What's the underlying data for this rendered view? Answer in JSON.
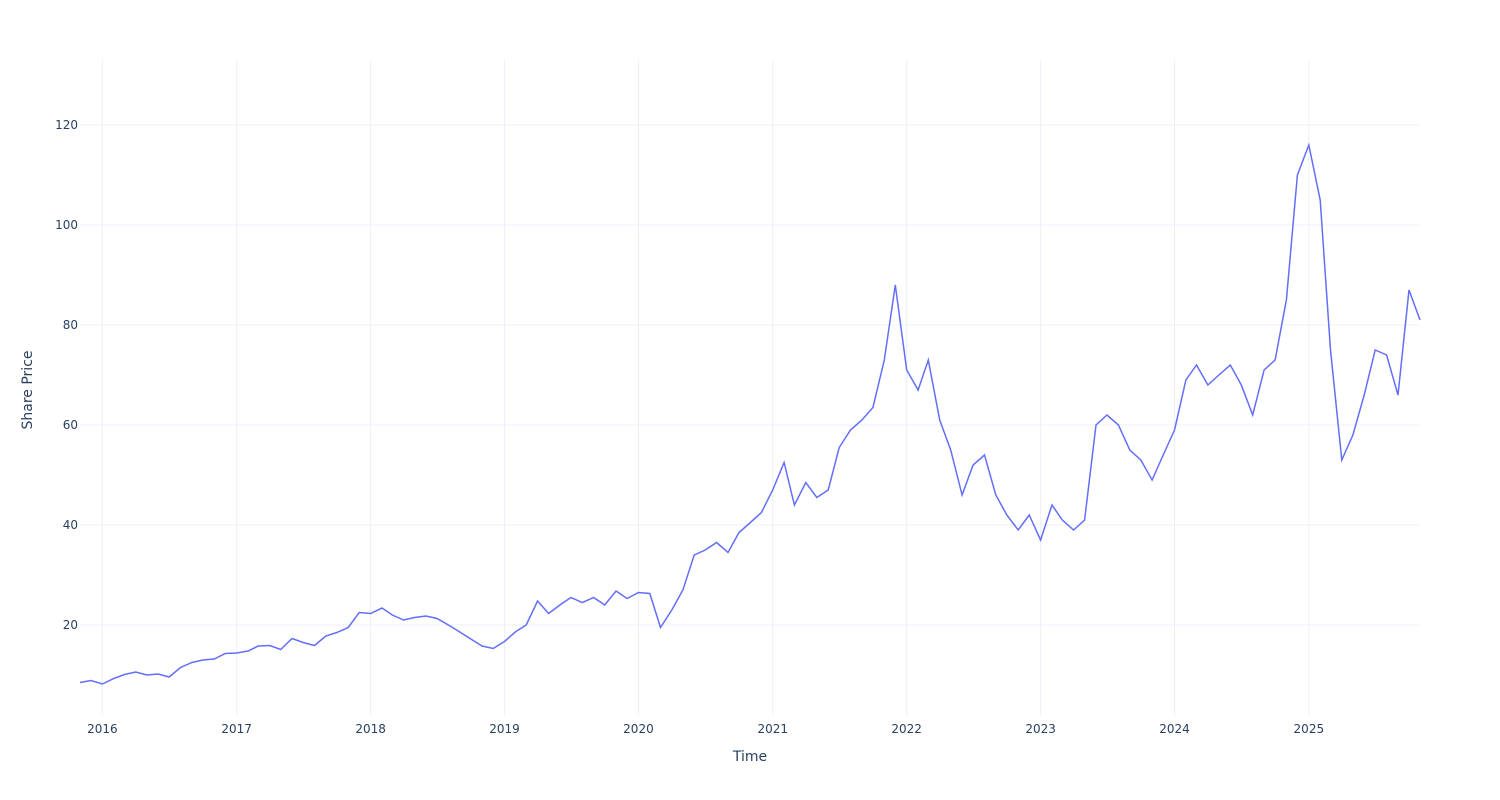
{
  "chart_data": {
    "type": "line",
    "title": "",
    "xlabel": "Time",
    "ylabel": "Share Price",
    "x_tick_labels": [
      "2016",
      "2017",
      "2018",
      "2019",
      "2020",
      "2021",
      "2022",
      "2023",
      "2024",
      "2025"
    ],
    "y_ticks": [
      20,
      40,
      60,
      80,
      100,
      120
    ],
    "xlim": [
      "2015-11-01",
      "2025-10-31"
    ],
    "ylim": [
      2,
      133
    ],
    "grid": true,
    "legend": "none",
    "line_color": "#636efa",
    "series": [
      {
        "points": [
          [
            "2015-11-01",
            8.5
          ],
          [
            "2015-12-01",
            8.9
          ],
          [
            "2016-01-01",
            8.2
          ],
          [
            "2016-02-01",
            9.3
          ],
          [
            "2016-03-01",
            10.1
          ],
          [
            "2016-04-01",
            10.6
          ],
          [
            "2016-05-01",
            10.0
          ],
          [
            "2016-06-01",
            10.2
          ],
          [
            "2016-07-01",
            9.6
          ],
          [
            "2016-08-01",
            11.5
          ],
          [
            "2016-09-01",
            12.5
          ],
          [
            "2016-10-01",
            13.0
          ],
          [
            "2016-11-01",
            13.2
          ],
          [
            "2016-12-01",
            14.3
          ],
          [
            "2017-01-01",
            14.4
          ],
          [
            "2017-02-01",
            14.8
          ],
          [
            "2017-03-01",
            15.8
          ],
          [
            "2017-04-01",
            15.9
          ],
          [
            "2017-05-01",
            15.1
          ],
          [
            "2017-06-01",
            17.3
          ],
          [
            "2017-07-01",
            16.5
          ],
          [
            "2017-08-01",
            15.9
          ],
          [
            "2017-09-01",
            17.8
          ],
          [
            "2017-10-01",
            18.5
          ],
          [
            "2017-11-01",
            19.5
          ],
          [
            "2017-12-01",
            22.5
          ],
          [
            "2018-01-01",
            22.3
          ],
          [
            "2018-02-01",
            23.4
          ],
          [
            "2018-03-01",
            22.0
          ],
          [
            "2018-04-01",
            21.0
          ],
          [
            "2018-05-01",
            21.5
          ],
          [
            "2018-06-01",
            21.8
          ],
          [
            "2018-07-01",
            21.3
          ],
          [
            "2018-08-01",
            20.0
          ],
          [
            "2018-09-01",
            18.6
          ],
          [
            "2018-10-01",
            17.2
          ],
          [
            "2018-11-01",
            15.8
          ],
          [
            "2018-12-01",
            15.3
          ],
          [
            "2019-01-01",
            16.7
          ],
          [
            "2019-02-01",
            18.7
          ],
          [
            "2019-03-01",
            20.0
          ],
          [
            "2019-04-01",
            24.8
          ],
          [
            "2019-05-01",
            22.3
          ],
          [
            "2019-06-01",
            24.0
          ],
          [
            "2019-07-01",
            25.5
          ],
          [
            "2019-08-01",
            24.5
          ],
          [
            "2019-09-01",
            25.5
          ],
          [
            "2019-10-01",
            24.0
          ],
          [
            "2019-11-01",
            26.8
          ],
          [
            "2019-12-01",
            25.3
          ],
          [
            "2020-01-01",
            26.5
          ],
          [
            "2020-02-01",
            26.3
          ],
          [
            "2020-03-01",
            19.5
          ],
          [
            "2020-04-01",
            23.0
          ],
          [
            "2020-05-01",
            27.0
          ],
          [
            "2020-06-01",
            34.0
          ],
          [
            "2020-07-01",
            35.0
          ],
          [
            "2020-08-01",
            36.5
          ],
          [
            "2020-09-01",
            34.5
          ],
          [
            "2020-10-01",
            38.5
          ],
          [
            "2020-11-01",
            40.5
          ],
          [
            "2020-12-01",
            42.5
          ],
          [
            "2021-01-01",
            47.0
          ],
          [
            "2021-02-01",
            52.5
          ],
          [
            "2021-03-01",
            44.0
          ],
          [
            "2021-04-01",
            48.5
          ],
          [
            "2021-05-01",
            45.5
          ],
          [
            "2021-06-01",
            47.0
          ],
          [
            "2021-07-01",
            55.5
          ],
          [
            "2021-08-01",
            59.0
          ],
          [
            "2021-09-01",
            61.0
          ],
          [
            "2021-10-01",
            63.5
          ],
          [
            "2021-11-01",
            73.0
          ],
          [
            "2021-12-01",
            88.0
          ],
          [
            "2022-01-01",
            71.0
          ],
          [
            "2022-02-01",
            67.0
          ],
          [
            "2022-03-01",
            73.0
          ],
          [
            "2022-04-01",
            61.0
          ],
          [
            "2022-05-01",
            55.0
          ],
          [
            "2022-06-01",
            46.0
          ],
          [
            "2022-07-01",
            52.0
          ],
          [
            "2022-08-01",
            54.0
          ],
          [
            "2022-09-01",
            46.0
          ],
          [
            "2022-10-01",
            42.0
          ],
          [
            "2022-11-01",
            39.0
          ],
          [
            "2022-12-01",
            42.0
          ],
          [
            "2023-01-01",
            37.0
          ],
          [
            "2023-02-01",
            44.0
          ],
          [
            "2023-03-01",
            41.0
          ],
          [
            "2023-04-01",
            39.0
          ],
          [
            "2023-05-01",
            41.0
          ],
          [
            "2023-06-01",
            60.0
          ],
          [
            "2023-07-01",
            62.0
          ],
          [
            "2023-08-01",
            60.0
          ],
          [
            "2023-09-01",
            55.0
          ],
          [
            "2023-10-01",
            53.0
          ],
          [
            "2023-11-01",
            49.0
          ],
          [
            "2023-12-01",
            54.0
          ],
          [
            "2024-01-01",
            59.0
          ],
          [
            "2024-02-01",
            69.0
          ],
          [
            "2024-03-01",
            72.0
          ],
          [
            "2024-04-01",
            68.0
          ],
          [
            "2024-05-01",
            70.0
          ],
          [
            "2024-06-01",
            72.0
          ],
          [
            "2024-07-01",
            68.0
          ],
          [
            "2024-08-01",
            62.0
          ],
          [
            "2024-09-01",
            71.0
          ],
          [
            "2024-10-01",
            73.0
          ],
          [
            "2024-11-01",
            85.0
          ],
          [
            "2024-12-01",
            110.0
          ],
          [
            "2025-01-01",
            116.0
          ],
          [
            "2025-02-01",
            105.0
          ],
          [
            "2025-03-01",
            75.0
          ],
          [
            "2025-04-01",
            53.0
          ],
          [
            "2025-05-01",
            58.0
          ],
          [
            "2025-06-01",
            66.0
          ],
          [
            "2025-07-01",
            75.0
          ],
          [
            "2025-08-01",
            74.0
          ],
          [
            "2025-09-01",
            66.0
          ],
          [
            "2025-10-01",
            87.0
          ],
          [
            "2025-10-31",
            81.0
          ]
        ]
      }
    ]
  }
}
